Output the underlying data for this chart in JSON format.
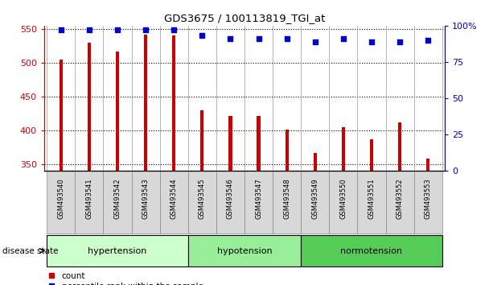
{
  "title": "GDS3675 / 100113819_TGI_at",
  "samples": [
    "GSM493540",
    "GSM493541",
    "GSM493542",
    "GSM493543",
    "GSM493544",
    "GSM493545",
    "GSM493546",
    "GSM493547",
    "GSM493548",
    "GSM493549",
    "GSM493550",
    "GSM493551",
    "GSM493552",
    "GSM493553"
  ],
  "counts": [
    505,
    530,
    517,
    542,
    540,
    430,
    421,
    422,
    401,
    367,
    405,
    387,
    412,
    358
  ],
  "percentile": [
    97,
    97,
    97,
    97,
    97,
    93,
    91,
    91,
    91,
    89,
    91,
    89,
    89,
    90
  ],
  "groups": [
    {
      "label": "hypertension",
      "start": 0,
      "end": 5,
      "color": "#ccffcc"
    },
    {
      "label": "hypotension",
      "start": 5,
      "end": 9,
      "color": "#99ee99"
    },
    {
      "label": "normotension",
      "start": 9,
      "end": 14,
      "color": "#55cc55"
    }
  ],
  "bar_color": "#cc0000",
  "dot_color": "#0000cc",
  "ylim_left": [
    340,
    555
  ],
  "yticks_left": [
    350,
    400,
    450,
    500,
    550
  ],
  "ylim_right": [
    0,
    100
  ],
  "yticks_right": [
    0,
    25,
    50,
    75,
    100
  ],
  "bar_width": 0.12,
  "background_color": "white",
  "legend_count_color": "#cc0000",
  "legend_dot_color": "#0000cc",
  "tick_bg_color": "#d8d8d8"
}
